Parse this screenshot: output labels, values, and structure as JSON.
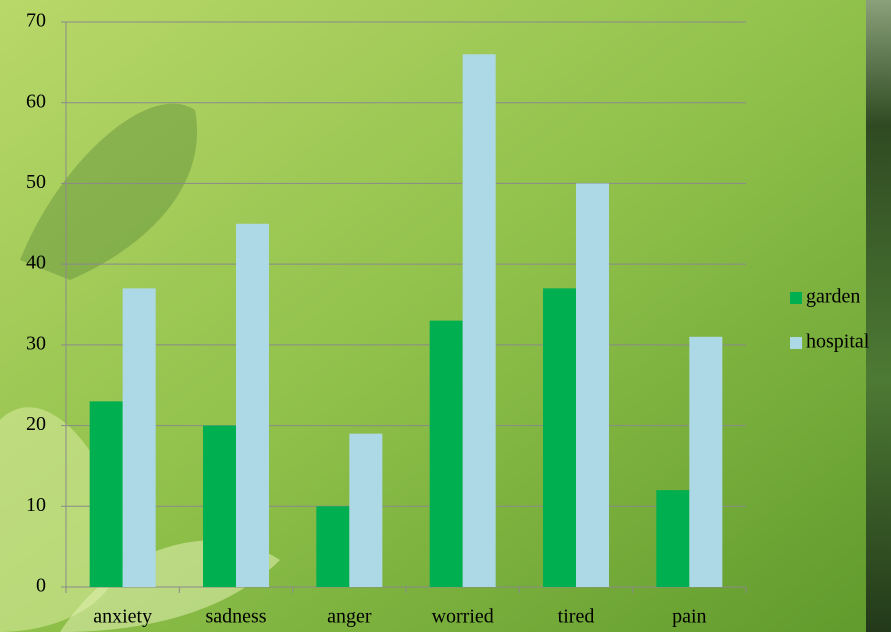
{
  "chart_data": {
    "type": "bar",
    "categories": [
      "anxiety",
      "sadness",
      "anger",
      "worried",
      "tired",
      "pain"
    ],
    "series": [
      {
        "name": "garden",
        "color": "#00b050",
        "values": [
          23,
          20,
          10,
          33,
          37,
          12
        ]
      },
      {
        "name": "hospital",
        "color": "#add8e6",
        "values": [
          37,
          45,
          19,
          66,
          50,
          31
        ]
      }
    ],
    "ylim": [
      0,
      70
    ],
    "yticks": [
      0,
      10,
      20,
      30,
      40,
      50,
      60,
      70
    ],
    "grid": true,
    "legend": "right"
  }
}
